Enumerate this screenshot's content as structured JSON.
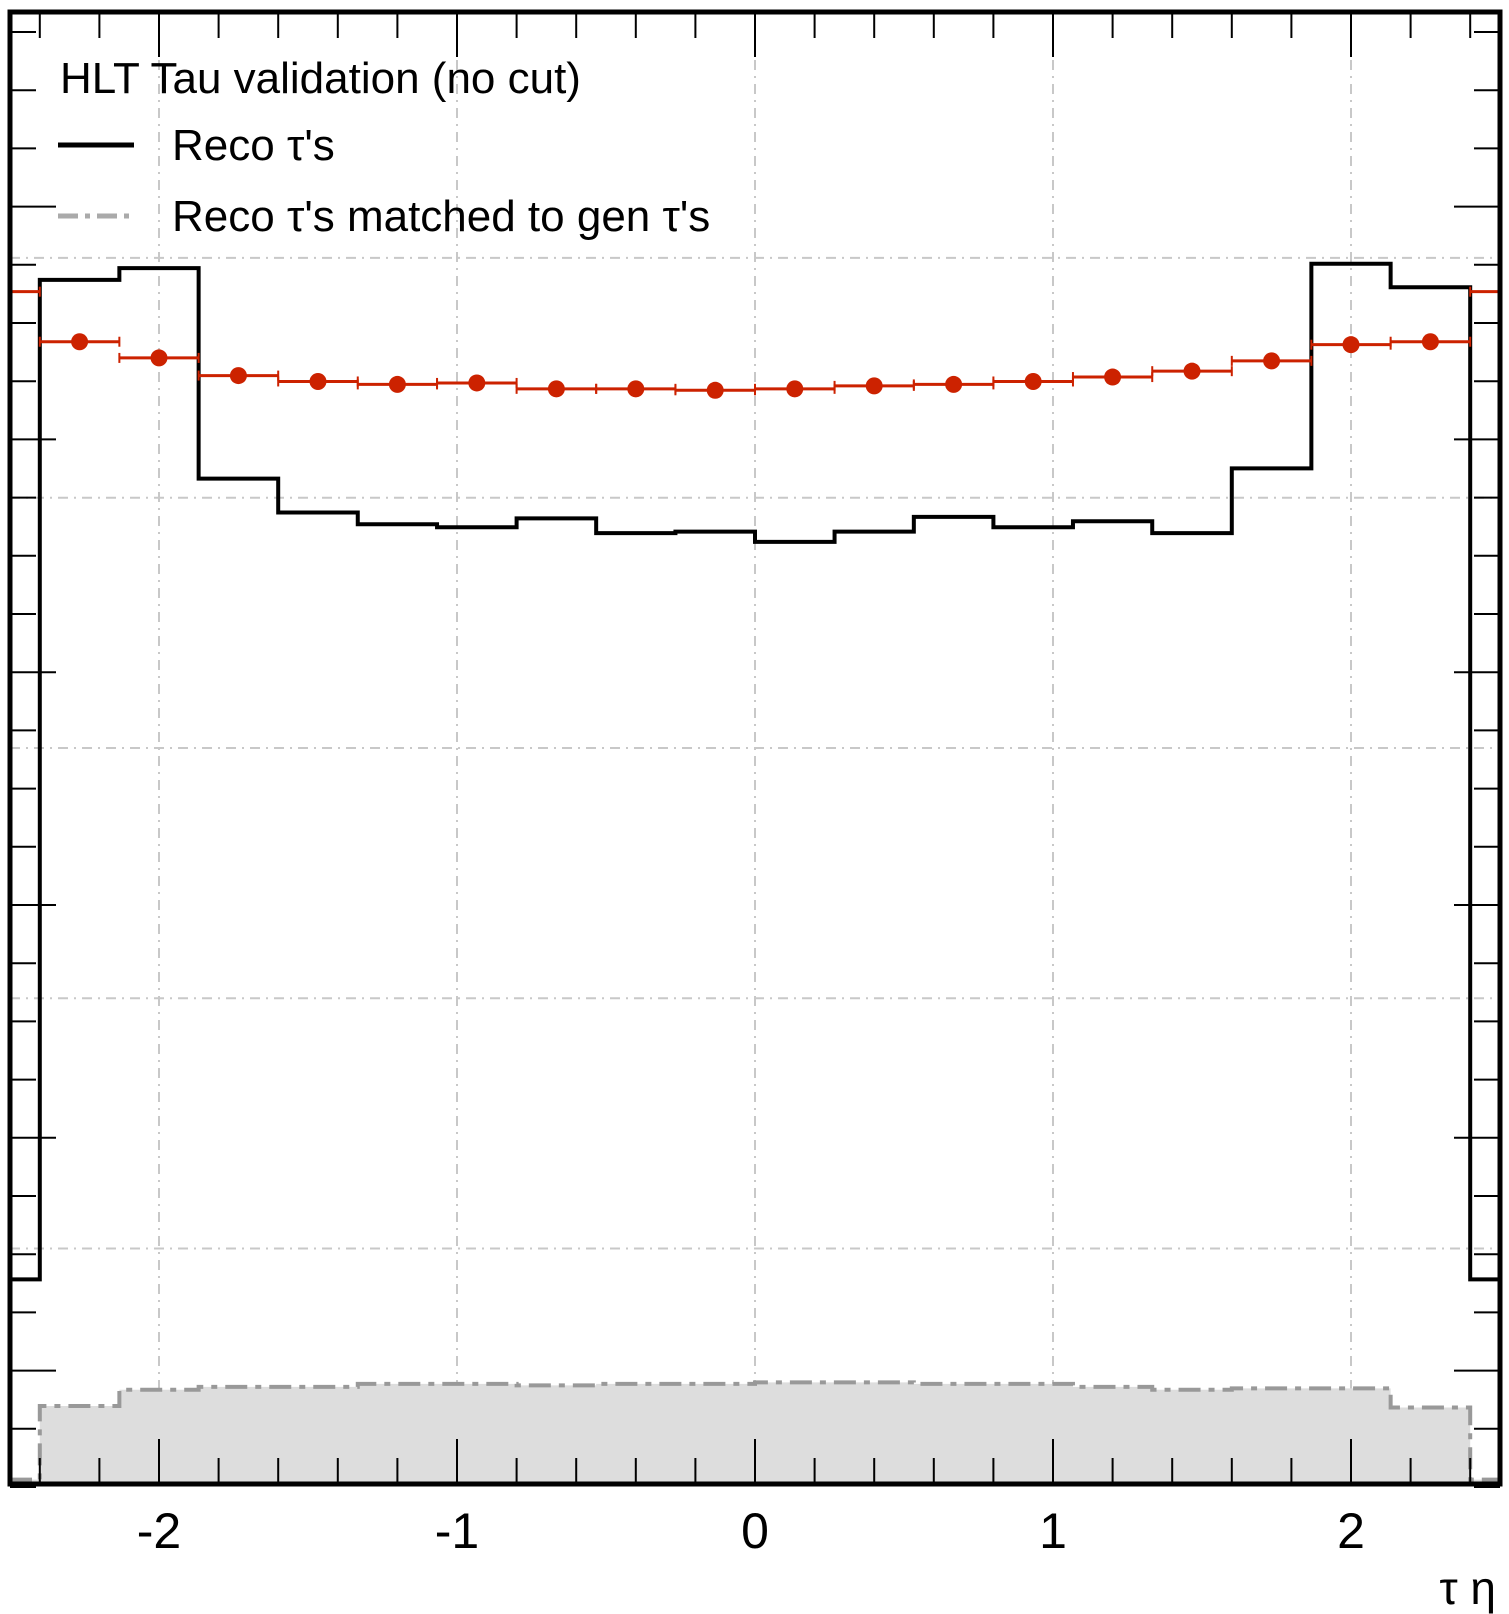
{
  "chart_data": {
    "type": "histogram",
    "xlabel": "τ η",
    "xlim": [
      -2.5,
      2.5
    ],
    "ylim": [
      0,
      1
    ],
    "grid": true,
    "legend": {
      "title": "HLT Tau validation (no cut)",
      "position": "top-left",
      "entries": [
        {
          "label": "Reco τ's",
          "style": "solid",
          "color": "#000000"
        },
        {
          "label": "Reco τ's matched to gen τ's",
          "style": "dash-dot",
          "color": "#999999"
        }
      ]
    },
    "x_ticks": [
      -2,
      -1,
      0,
      1,
      2
    ],
    "bin_edges": [
      -2.5,
      -2.4,
      -2.133,
      -1.867,
      -1.6,
      -1.333,
      -1.067,
      -0.8,
      -0.533,
      -0.267,
      0.0,
      0.267,
      0.533,
      0.8,
      1.067,
      1.333,
      1.6,
      1.867,
      2.133,
      2.4,
      2.5
    ],
    "series": [
      {
        "name": "Reco τ's",
        "kind": "step",
        "color": "#000000",
        "values": [
          0.139,
          0.818,
          0.826,
          0.683,
          0.66,
          0.652,
          0.65,
          0.656,
          0.646,
          0.647,
          0.64,
          0.647,
          0.657,
          0.65,
          0.654,
          0.646,
          0.69,
          0.829,
          0.813,
          0.139
        ]
      },
      {
        "name": "Reco τ's matched to gen τ's",
        "kind": "step-filled",
        "color": "#999999",
        "fill": "#dddddd",
        "values": [
          0.003,
          0.053,
          0.064,
          0.066,
          0.066,
          0.068,
          0.068,
          0.067,
          0.068,
          0.068,
          0.069,
          0.069,
          0.068,
          0.068,
          0.066,
          0.064,
          0.065,
          0.065,
          0.052,
          0.003
        ]
      },
      {
        "kind": "points",
        "color": "#cc2200",
        "values": [
          0.81,
          0.776,
          0.765,
          0.753,
          0.749,
          0.747,
          0.748,
          0.744,
          0.744,
          0.743,
          0.744,
          0.746,
          0.747,
          0.749,
          0.752,
          0.756,
          0.763,
          0.774,
          0.776,
          0.81
        ]
      }
    ]
  }
}
